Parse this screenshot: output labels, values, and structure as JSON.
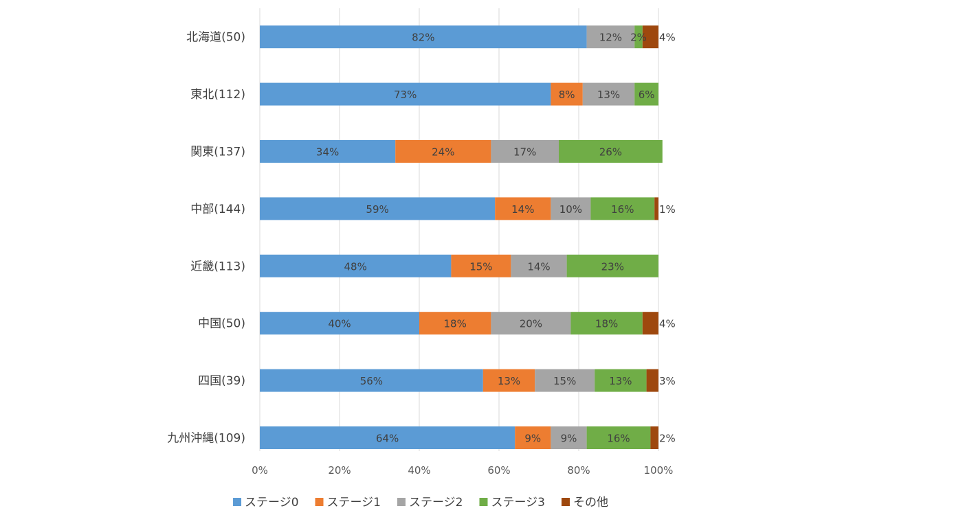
{
  "chart_data": {
    "type": "bar",
    "orientation": "horizontal",
    "stacked": "percent",
    "categories": [
      "北海道(50)",
      "東北(112)",
      "関東(137)",
      "中部(144)",
      "近畿(113)",
      "中国(50)",
      "四国(39)",
      "九州沖縄(109)"
    ],
    "series": [
      {
        "name": "ステージ0",
        "color": "#5B9BD5",
        "values": [
          82,
          73,
          34,
          59,
          48,
          40,
          56,
          64
        ],
        "labels": [
          "82%",
          "73%",
          "34%",
          "59%",
          "48%",
          "40%",
          "56%",
          "64%"
        ]
      },
      {
        "name": "ステージ1",
        "color": "#ED7D31",
        "values": [
          0,
          8,
          24,
          14,
          15,
          18,
          13,
          9
        ],
        "labels": [
          "",
          "8%",
          "24%",
          "14%",
          "15%",
          "18%",
          "13%",
          "9%"
        ]
      },
      {
        "name": "ステージ2",
        "color": "#A5A5A5",
        "values": [
          12,
          13,
          17,
          10,
          14,
          20,
          15,
          9
        ],
        "labels": [
          "12%",
          "13%",
          "17%",
          "10%",
          "14%",
          "20%",
          "15%",
          "9%"
        ]
      },
      {
        "name": "ステージ3",
        "color": "#70AD47",
        "values": [
          2,
          6,
          26,
          16,
          23,
          18,
          13,
          16
        ],
        "labels": [
          "2%",
          "6%",
          "26%",
          "16%",
          "23%",
          "18%",
          "13%",
          "16%"
        ]
      },
      {
        "name": "その他",
        "color": "#9E480E",
        "values": [
          4,
          0,
          0,
          1,
          0,
          4,
          3,
          2
        ],
        "labels": [
          "4%",
          "",
          "",
          "1%",
          "",
          "4%",
          "3%",
          "2%"
        ]
      }
    ],
    "x_ticks": [
      "0%",
      "20%",
      "40%",
      "60%",
      "80%",
      "100%"
    ],
    "xlim": [
      0,
      100
    ],
    "grid": true,
    "legend_position": "bottom",
    "title": "",
    "xlabel": "",
    "ylabel": ""
  }
}
